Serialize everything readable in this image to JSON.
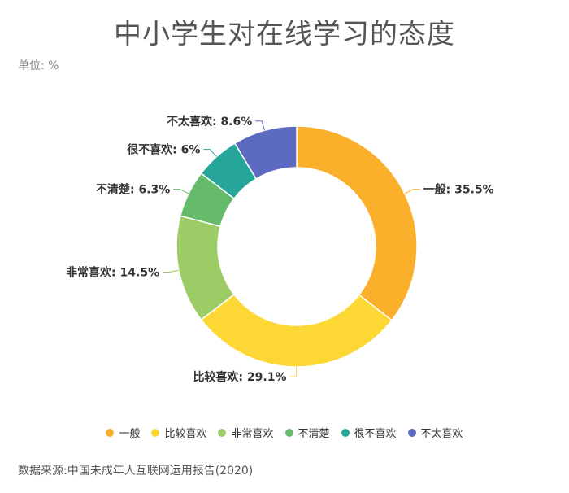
{
  "title": "中小学生对在线学习的态度",
  "unit_label": "单位: %",
  "source": "数据来源:中国未成年人互联网运用报告(2020)",
  "chart_data": {
    "type": "pie",
    "title": "中小学生对在线学习的态度",
    "labels": [
      "一般",
      "比较喜欢",
      "非常喜欢",
      "不清楚",
      "很不喜欢",
      "不太喜欢"
    ],
    "values": [
      35.5,
      29.1,
      14.5,
      6.3,
      6,
      8.6
    ],
    "display_values": [
      "35.5%",
      "29.1%",
      "14.5%",
      "6.3%",
      "6%",
      "8.6%"
    ],
    "colors": [
      "#FBB02C",
      "#FDD835",
      "#9CCC65",
      "#66BB6A",
      "#26A69A",
      "#5C6BC0"
    ],
    "donut": true,
    "legend": "bottom"
  }
}
